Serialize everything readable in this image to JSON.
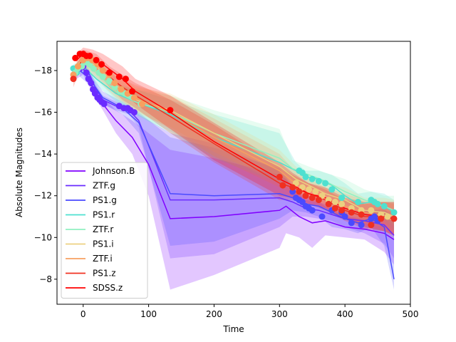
{
  "chart_data": {
    "type": "line",
    "title": "",
    "xlabel": "Time",
    "ylabel": "Absolute Magnitudes",
    "xlim": [
      -40,
      500
    ],
    "ylim": [
      -6.8,
      -19.4
    ],
    "y_inverted": true,
    "xticks": [
      0,
      100,
      200,
      300,
      400,
      500
    ],
    "xtick_labels": [
      "0",
      "100",
      "200",
      "300",
      "400",
      "500"
    ],
    "yticks": [
      -18,
      -16,
      -14,
      -12,
      -10,
      -8
    ],
    "ytick_labels": [
      "−18",
      "−16",
      "−14",
      "−12",
      "−10",
      "−8"
    ],
    "grid": false,
    "legend_position": "lower-left",
    "series": [
      {
        "name": "Johnson.B",
        "color": "#8000ff",
        "x": [
          -15,
          0,
          10,
          20,
          30,
          50,
          75,
          100,
          133,
          200,
          300,
          310,
          330,
          350,
          370,
          400,
          430,
          460,
          475
        ],
        "y": [
          -17.8,
          -18.1,
          -17.5,
          -16.8,
          -16.4,
          -15.6,
          -14.8,
          -13.5,
          -10.9,
          -11.0,
          -11.3,
          -11.5,
          -11.0,
          -10.7,
          -10.8,
          -10.5,
          -10.4,
          -10.2,
          -9.9
        ],
        "upper": [
          -17.5,
          -17.8,
          -17.2,
          -16.6,
          -16.1,
          -15.0,
          -14.0,
          -12.0,
          -7.5,
          -8.2,
          -9.5,
          -10.2,
          -10.0,
          -9.5,
          -10.1,
          -10.0,
          -9.9,
          -9.3,
          -8.7
        ],
        "lower": [
          -18.1,
          -18.4,
          -17.8,
          -17.0,
          -16.7,
          -16.1,
          -15.6,
          -15.0,
          -14.2,
          -13.8,
          -13.0,
          -12.8,
          -12.1,
          -11.9,
          -11.5,
          -11.0,
          -10.9,
          -10.9,
          -11.0
        ],
        "points_x": [],
        "points_y": []
      },
      {
        "name": "ZTF.g",
        "color": "#6a2bff",
        "x": [
          -10,
          0,
          10,
          20,
          30,
          50,
          70,
          85,
          133,
          200,
          300,
          320,
          340,
          360,
          380,
          400,
          430,
          460,
          475
        ],
        "y": [
          -18.0,
          -18.3,
          -17.8,
          -17.1,
          -16.6,
          -16.3,
          -16.1,
          -15.6,
          -11.8,
          -11.8,
          -11.9,
          -11.7,
          -11.4,
          -11.3,
          -11.1,
          -10.9,
          -10.8,
          -10.6,
          -10.1
        ],
        "upper": [
          -17.8,
          -18.1,
          -17.6,
          -16.9,
          -16.4,
          -16.1,
          -15.9,
          -15.3,
          -9.0,
          -9.2,
          -10.5,
          -11.0,
          -11.0,
          -10.9,
          -10.8,
          -10.5,
          -10.2,
          -9.7,
          -9.0
        ],
        "lower": [
          -18.2,
          -18.5,
          -18.0,
          -17.3,
          -16.8,
          -16.5,
          -16.3,
          -15.9,
          -15.0,
          -14.5,
          -13.2,
          -12.4,
          -11.8,
          -11.7,
          -11.5,
          -11.3,
          -11.3,
          -11.3,
          -11.2
        ],
        "points_x": [
          -5,
          0,
          5,
          8,
          12,
          15,
          18,
          22,
          25,
          28,
          32,
          55,
          62,
          68,
          72,
          78
        ],
        "points_y": [
          -18.1,
          -18.2,
          -17.9,
          -17.6,
          -17.4,
          -17.1,
          -16.9,
          -16.7,
          -16.6,
          -16.5,
          -16.4,
          -16.3,
          -16.2,
          -16.2,
          -16.1,
          -16.0
        ]
      },
      {
        "name": "PS1.g",
        "color": "#4a4aff",
        "x": [
          -5,
          10,
          30,
          60,
          85,
          133,
          200,
          300,
          320,
          340,
          360,
          380,
          400,
          420,
          440,
          460,
          475
        ],
        "y": [
          -18.0,
          -17.6,
          -16.7,
          -16.2,
          -15.5,
          -12.1,
          -12.0,
          -12.1,
          -11.9,
          -11.6,
          -11.5,
          -11.2,
          -10.9,
          -10.7,
          -10.9,
          -10.5,
          -8.0
        ],
        "upper": [
          -17.7,
          -17.3,
          -16.4,
          -15.9,
          -15.0,
          -9.6,
          -9.8,
          -10.9,
          -11.3,
          -11.2,
          -11.0,
          -10.5,
          -10.4,
          -10.2,
          -10.5,
          -9.6,
          -7.5
        ],
        "lower": [
          -18.3,
          -17.9,
          -17.0,
          -16.5,
          -16.0,
          -14.8,
          -14.3,
          -13.3,
          -12.5,
          -12.0,
          -11.9,
          -11.8,
          -11.4,
          -11.2,
          -11.3,
          -11.4,
          -10.8
        ],
        "points_x": [
          320,
          325,
          330,
          335,
          340,
          345,
          350,
          365,
          380,
          395,
          400,
          410,
          425,
          440,
          445,
          450
        ],
        "points_y": [
          -12.2,
          -11.9,
          -11.8,
          -11.7,
          -11.5,
          -11.4,
          -11.3,
          -11.0,
          -11.3,
          -11.2,
          -11.0,
          -10.7,
          -10.6,
          -10.9,
          -11.0,
          -10.8
        ]
      },
      {
        "name": "PS1.r",
        "color": "#4ee0d0",
        "x": [
          -15,
          0,
          20,
          50,
          80,
          133,
          200,
          300,
          325,
          340,
          360,
          380,
          400,
          420,
          440,
          460,
          475
        ],
        "y": [
          -18.0,
          -18.2,
          -17.6,
          -16.9,
          -16.5,
          -15.9,
          -14.8,
          -13.6,
          -13.2,
          -12.9,
          -12.8,
          -12.5,
          -12.0,
          -11.6,
          -11.7,
          -11.5,
          -11.2
        ],
        "upper": [
          -17.7,
          -17.9,
          -17.3,
          -16.5,
          -15.9,
          -15.0,
          -13.8,
          -12.6,
          -12.5,
          -12.4,
          -12.2,
          -11.8,
          -11.3,
          -11.1,
          -11.2,
          -10.8,
          -10.3
        ],
        "lower": [
          -18.3,
          -18.5,
          -17.9,
          -17.3,
          -17.1,
          -16.6,
          -15.9,
          -15.0,
          -13.6,
          -13.2,
          -13.2,
          -13.0,
          -12.6,
          -12.1,
          -12.2,
          -12.1,
          -11.8
        ],
        "points_x": [
          -15,
          -10,
          330,
          335,
          340,
          350,
          360,
          370,
          380,
          395,
          420,
          440,
          445,
          450,
          460,
          475
        ],
        "points_y": [
          -18.1,
          -17.9,
          -13.2,
          -13.1,
          -12.9,
          -12.8,
          -12.7,
          -12.6,
          -12.3,
          -11.9,
          -11.7,
          -11.8,
          -11.7,
          -11.6,
          -11.5,
          -11.2
        ]
      },
      {
        "name": "ZTF.r",
        "color": "#90f0c0",
        "x": [
          -10,
          0,
          20,
          50,
          80,
          133,
          200,
          300,
          320,
          345,
          370,
          400,
          430,
          460,
          475
        ],
        "y": [
          -18.1,
          -18.4,
          -17.9,
          -17.0,
          -16.5,
          -16.0,
          -15.0,
          -13.8,
          -13.3,
          -13.0,
          -12.7,
          -12.2,
          -11.8,
          -11.5,
          -11.3
        ],
        "upper": [
          -17.8,
          -18.1,
          -17.6,
          -16.6,
          -15.9,
          -15.1,
          -13.9,
          -12.9,
          -12.7,
          -12.5,
          -12.2,
          -11.6,
          -11.3,
          -10.9,
          -10.6
        ],
        "lower": [
          -18.4,
          -18.7,
          -18.2,
          -17.4,
          -17.1,
          -16.8,
          -16.1,
          -15.2,
          -13.7,
          -13.4,
          -13.1,
          -12.8,
          -12.3,
          -12.0,
          -12.0
        ],
        "points_x": [
          -12,
          -8,
          -2,
          4,
          10,
          16,
          24,
          30,
          40,
          48,
          56,
          64,
          72,
          88
        ],
        "points_y": [
          -17.9,
          -18.1,
          -18.2,
          -18.4,
          -18.3,
          -18.1,
          -17.9,
          -17.7,
          -17.5,
          -17.2,
          -17.0,
          -16.9,
          -16.8,
          -16.4
        ]
      },
      {
        "name": "PS1.i",
        "color": "#ecd080",
        "x": [
          -10,
          0,
          20,
          50,
          80,
          133,
          200,
          300,
          325,
          345,
          370,
          400,
          430,
          460,
          475
        ],
        "y": [
          -18.2,
          -18.6,
          -18.2,
          -17.3,
          -16.6,
          -16.1,
          -15.0,
          -13.4,
          -12.8,
          -12.5,
          -12.1,
          -11.8,
          -11.3,
          -11.2,
          -11.0
        ],
        "upper": [
          -17.9,
          -18.3,
          -17.8,
          -16.8,
          -16.0,
          -15.3,
          -14.1,
          -12.6,
          -12.2,
          -12.0,
          -11.6,
          -11.2,
          -10.7,
          -10.5,
          -10.2
        ],
        "lower": [
          -18.5,
          -18.9,
          -18.6,
          -17.8,
          -17.2,
          -16.9,
          -15.9,
          -14.2,
          -13.4,
          -13.0,
          -12.6,
          -12.4,
          -11.9,
          -11.9,
          -11.8
        ],
        "points_x": [
          325,
          335,
          345,
          355,
          365,
          375,
          385,
          395,
          410,
          425,
          440,
          455,
          465
        ],
        "points_y": [
          -12.6,
          -12.4,
          -12.3,
          -12.2,
          -12.0,
          -11.8,
          -11.7,
          -11.6,
          -11.4,
          -11.3,
          -11.3,
          -11.1,
          -11.0
        ]
      },
      {
        "name": "ZTF.i",
        "color": "#f7a060",
        "x": [
          -15,
          0,
          20,
          50,
          80,
          133,
          200,
          300,
          320,
          345,
          370,
          400,
          430,
          460,
          475
        ],
        "y": [
          -17.8,
          -18.5,
          -18.0,
          -17.2,
          -16.7,
          -16.0,
          -14.8,
          -13.2,
          -12.7,
          -12.3,
          -11.9,
          -11.5,
          -11.2,
          -11.0,
          -10.8
        ],
        "upper": [
          -17.5,
          -18.2,
          -17.6,
          -16.7,
          -16.1,
          -15.2,
          -13.9,
          -12.4,
          -12.1,
          -11.8,
          -11.4,
          -10.9,
          -10.6,
          -10.3,
          -10.0
        ],
        "lower": [
          -18.1,
          -18.8,
          -18.4,
          -17.7,
          -17.3,
          -16.8,
          -15.7,
          -14.0,
          -13.3,
          -12.8,
          -12.4,
          -12.1,
          -11.8,
          -11.7,
          -11.6
        ],
        "points_x": [
          -15,
          -8,
          0,
          6,
          14,
          22,
          30,
          40,
          48,
          58,
          68,
          78,
          90
        ],
        "points_y": [
          -17.8,
          -18.2,
          -18.5,
          -18.6,
          -18.5,
          -18.3,
          -18.0,
          -17.8,
          -17.4,
          -17.1,
          -16.9,
          -16.7,
          -16.4
        ]
      },
      {
        "name": "PS1.z",
        "color": "#f03020",
        "x": [
          -15,
          0,
          20,
          40,
          60,
          80,
          133,
          200,
          300,
          320,
          345,
          370,
          400,
          430,
          460,
          475
        ],
        "y": [
          -17.5,
          -18.7,
          -18.4,
          -17.7,
          -17.2,
          -16.8,
          -15.8,
          -14.5,
          -12.6,
          -12.4,
          -12.1,
          -11.8,
          -11.3,
          -11.0,
          -11.0,
          -10.9
        ],
        "upper": [
          -17.2,
          -18.4,
          -18.0,
          -17.2,
          -16.6,
          -16.2,
          -15.0,
          -13.6,
          -11.8,
          -11.8,
          -11.6,
          -11.3,
          -10.8,
          -10.4,
          -10.3,
          -10.1
        ],
        "lower": [
          -17.8,
          -19.0,
          -18.8,
          -18.2,
          -17.8,
          -17.4,
          -16.6,
          -15.4,
          -13.4,
          -13.0,
          -12.6,
          -12.3,
          -11.8,
          -11.6,
          -11.7,
          -11.7
        ],
        "points_x": [
          -15,
          300,
          305,
          320,
          330,
          340,
          350,
          360,
          375,
          385,
          395,
          410,
          425,
          440,
          455,
          475
        ],
        "points_y": [
          -17.6,
          -12.9,
          -12.5,
          -12.4,
          -12.2,
          -12.0,
          -11.9,
          -11.8,
          -11.6,
          -11.4,
          -11.3,
          -11.2,
          -11.1,
          -10.6,
          -10.9,
          -10.9
        ]
      },
      {
        "name": "SDSS.z",
        "color": "#ff0000",
        "x": [
          -10,
          0,
          15,
          30,
          60,
          80,
          133,
          200,
          300,
          320,
          345,
          370,
          400,
          430,
          460,
          475
        ],
        "y": [
          -18.5,
          -18.8,
          -18.6,
          -18.3,
          -17.6,
          -17.0,
          -16.0,
          -14.6,
          -12.8,
          -12.5,
          -12.1,
          -11.9,
          -11.4,
          -11.1,
          -11.0,
          -10.9
        ],
        "upper": [
          -18.2,
          -18.5,
          -18.2,
          -17.8,
          -17.0,
          -16.4,
          -15.2,
          -13.7,
          -12.0,
          -11.9,
          -11.6,
          -11.4,
          -10.9,
          -10.5,
          -10.3,
          -10.1
        ],
        "lower": [
          -18.8,
          -19.1,
          -19.0,
          -18.8,
          -18.2,
          -17.6,
          -16.8,
          -15.5,
          -13.6,
          -13.1,
          -12.6,
          -12.4,
          -11.9,
          -11.7,
          -11.7,
          -11.7
        ],
        "points_x": [
          -12,
          -5,
          0,
          5,
          10,
          20,
          28,
          40,
          55,
          65,
          75,
          133
        ],
        "points_y": [
          -18.6,
          -18.8,
          -18.8,
          -18.7,
          -18.7,
          -18.5,
          -18.3,
          -17.9,
          -17.7,
          -17.6,
          -17.0,
          -16.1
        ]
      }
    ]
  }
}
